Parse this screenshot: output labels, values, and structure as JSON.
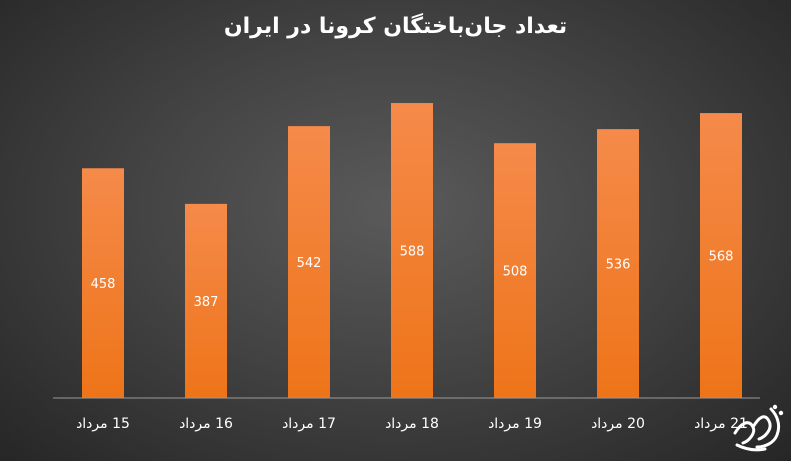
{
  "chart_data": {
    "type": "bar",
    "title": "تعداد جان‌باختگان کرونا در ایران",
    "categories": [
      "15 مرداد",
      "16 مرداد",
      "17 مرداد",
      "18 مرداد",
      "19 مرداد",
      "20 مرداد",
      "21 مرداد"
    ],
    "values": [
      458,
      387,
      542,
      588,
      508,
      536,
      568
    ],
    "xlabel": "",
    "ylabel": "",
    "ylim": [
      0,
      620
    ],
    "grid": false,
    "legend": "none",
    "bar_color": "#f0781e",
    "label_color": "#ffffff"
  },
  "watermark": {
    "text": "آویاتن",
    "color": "#ffffff"
  }
}
